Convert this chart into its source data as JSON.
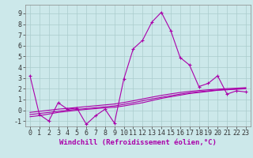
{
  "title": "",
  "xlabel": "Windchill (Refroidissement éolien,°C)",
  "ylabel": "",
  "bg_color": "#cce8ea",
  "line_color": "#aa00aa",
  "marker": "+",
  "x_data": [
    0,
    1,
    2,
    3,
    4,
    5,
    6,
    7,
    8,
    9,
    10,
    11,
    12,
    13,
    14,
    15,
    16,
    17,
    18,
    19,
    20,
    21,
    22,
    23
  ],
  "y_main": [
    3.2,
    -0.4,
    -1.0,
    0.7,
    0.1,
    0.2,
    -1.3,
    -0.5,
    0.1,
    -1.2,
    2.9,
    5.7,
    6.5,
    8.2,
    9.1,
    7.4,
    4.9,
    4.2,
    2.2,
    2.5,
    3.2,
    1.5,
    1.8,
    1.7
  ],
  "y_trend1": [
    -0.6,
    -0.5,
    -0.35,
    -0.2,
    -0.1,
    0.0,
    0.08,
    0.15,
    0.22,
    0.28,
    0.4,
    0.55,
    0.7,
    0.9,
    1.1,
    1.25,
    1.4,
    1.55,
    1.65,
    1.75,
    1.85,
    1.9,
    1.95,
    2.0
  ],
  "y_trend2": [
    -0.4,
    -0.3,
    -0.2,
    -0.1,
    -0.0,
    0.08,
    0.16,
    0.24,
    0.32,
    0.4,
    0.55,
    0.7,
    0.88,
    1.05,
    1.2,
    1.35,
    1.5,
    1.62,
    1.72,
    1.8,
    1.88,
    1.94,
    1.98,
    2.04
  ],
  "y_trend3": [
    -0.2,
    -0.1,
    0.0,
    0.1,
    0.18,
    0.26,
    0.34,
    0.42,
    0.5,
    0.58,
    0.72,
    0.88,
    1.05,
    1.22,
    1.38,
    1.52,
    1.65,
    1.75,
    1.83,
    1.9,
    1.96,
    2.01,
    2.05,
    2.1
  ],
  "xlim": [
    -0.5,
    23.5
  ],
  "ylim": [
    -1.5,
    9.8
  ],
  "yticks": [
    -1,
    0,
    1,
    2,
    3,
    4,
    5,
    6,
    7,
    8,
    9
  ],
  "xticks": [
    0,
    1,
    2,
    3,
    4,
    5,
    6,
    7,
    8,
    9,
    10,
    11,
    12,
    13,
    14,
    15,
    16,
    17,
    18,
    19,
    20,
    21,
    22,
    23
  ],
  "grid_color": "#aacccc",
  "xlabel_fontsize": 6.5,
  "tick_fontsize": 6.0,
  "line_width": 0.8,
  "marker_size": 3.5,
  "marker_edge_width": 0.8
}
